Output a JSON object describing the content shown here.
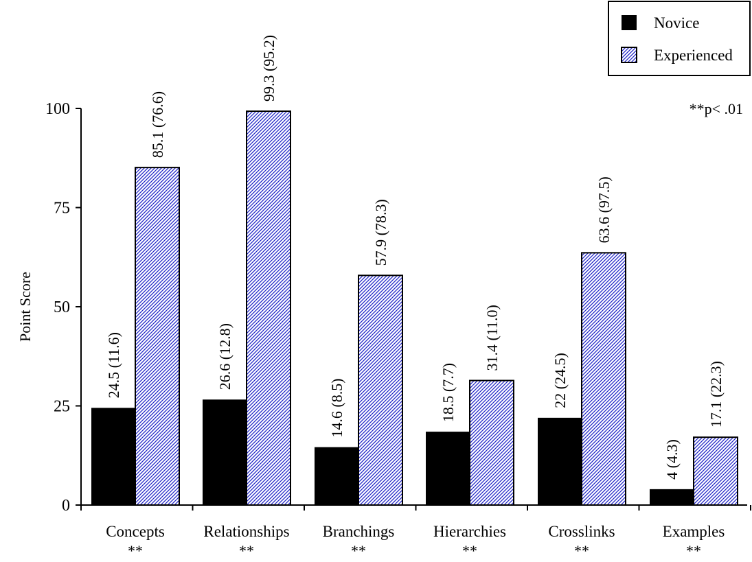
{
  "chart_data": {
    "type": "bar",
    "title": "",
    "xlabel": "",
    "ylabel": "Point Score",
    "ylim": [
      0,
      100
    ],
    "yticks": [
      "0",
      "25",
      "50",
      "75",
      "100"
    ],
    "categories": [
      "Concepts",
      "Relationships",
      "Branchings",
      "Hierarchies",
      "Crosslinks",
      "Examples"
    ],
    "significance_marks": [
      "**",
      "**",
      "**",
      "**",
      "**",
      "**"
    ],
    "significance_note": "**p< .01",
    "grid": false,
    "legend_position": "top-right",
    "series": [
      {
        "name": "Novice",
        "values": [
          24.5,
          26.6,
          14.6,
          18.5,
          22,
          4
        ],
        "sd": [
          11.6,
          12.8,
          8.5,
          7.7,
          24.5,
          4.3
        ],
        "data_labels": [
          "24.5  (11.6)",
          "26.6  (12.8)",
          "14.6  (8.5)",
          "18.5  (7.7)",
          "22  (24.5)",
          "4  (4.3)"
        ],
        "fill": "solid",
        "color": "#000000"
      },
      {
        "name": "Experienced",
        "values": [
          85.1,
          99.3,
          57.9,
          31.4,
          63.6,
          17.1
        ],
        "sd": [
          76.6,
          95.2,
          78.3,
          11.0,
          97.5,
          22.3
        ],
        "data_labels": [
          "85.1  (76.6)",
          "99.3  (95.2)",
          "57.9  (78.3)",
          "31.4  (11.0)",
          "63.6  (97.5)",
          "17.1  (22.3)"
        ],
        "fill": "diagonal-hatch",
        "color": "#1f24c8"
      }
    ]
  }
}
